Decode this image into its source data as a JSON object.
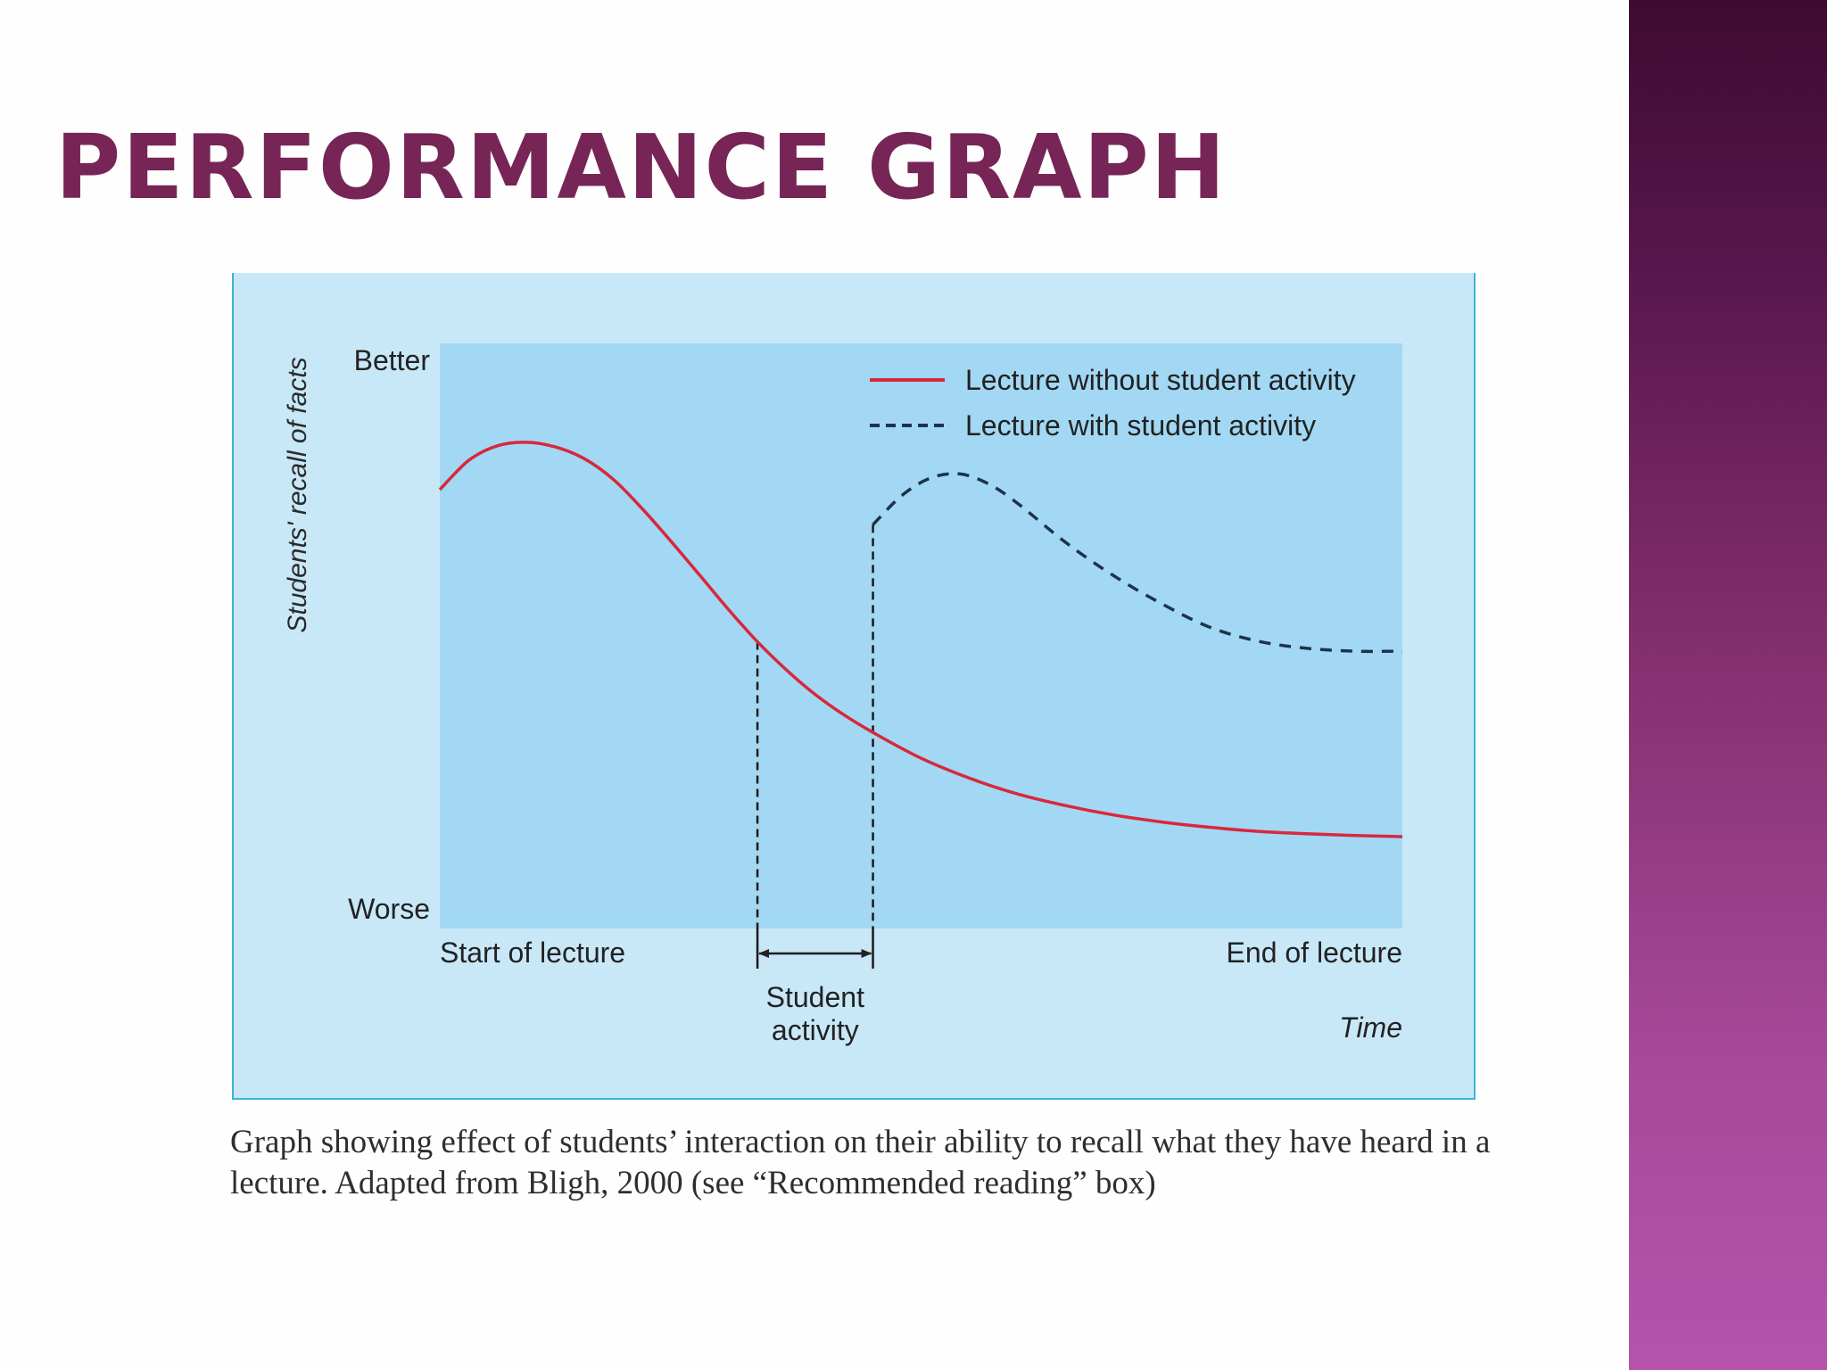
{
  "slide": {
    "title": "PERFORMANCE GRAPH",
    "caption": "Graph showing effect of students’ interaction on their ability to recall what they have heard in a lecture. Adapted from Bligh, 2000 (see “Recommended reading” box)"
  },
  "colors": {
    "title": "#772556",
    "without_activity": "#d8283c",
    "with_activity": "#1c3448",
    "figure_background": "#c8e8f8",
    "plot_background": "#a2d8f4"
  },
  "chart_data": {
    "type": "line",
    "title": "",
    "xlabel": "Time",
    "ylabel": "Students' recall of facts",
    "y_tick_labels": {
      "top": "Better",
      "bottom": "Worse"
    },
    "x_tick_labels": {
      "start": "Start of lecture",
      "end": "End of lecture"
    },
    "xlim": [
      0,
      100
    ],
    "ylim": [
      0,
      100
    ],
    "legend_position": "top-right",
    "activity_interval": {
      "start": 33,
      "end": 45,
      "label": "Student activity"
    },
    "series": [
      {
        "name": "Lecture without student activity",
        "style": "solid",
        "x": [
          0,
          3,
          6,
          9,
          12,
          15,
          18,
          21,
          24,
          27,
          30,
          33,
          36,
          39,
          42,
          45,
          50,
          55,
          60,
          65,
          70,
          75,
          80,
          85,
          90,
          95,
          100
        ],
        "y": [
          75,
          80,
          82.5,
          83.1,
          82.3,
          80.3,
          76.8,
          71.8,
          66.2,
          60.4,
          54.5,
          49,
          44.2,
          40,
          36.5,
          33.5,
          29.1,
          25.7,
          23,
          21,
          19.4,
          18.2,
          17.3,
          16.6,
          16.2,
          15.9,
          15.7
        ]
      },
      {
        "name": "Lecture with student activity",
        "style": "dashed",
        "x": [
          45,
          48,
          51,
          54,
          57,
          60,
          65,
          70,
          75,
          80,
          85,
          90,
          95,
          100
        ],
        "y": [
          69,
          74,
          77,
          77.7,
          76,
          72.7,
          66,
          60.3,
          55.5,
          51.5,
          49.1,
          47.9,
          47.4,
          47.4
        ]
      }
    ]
  }
}
